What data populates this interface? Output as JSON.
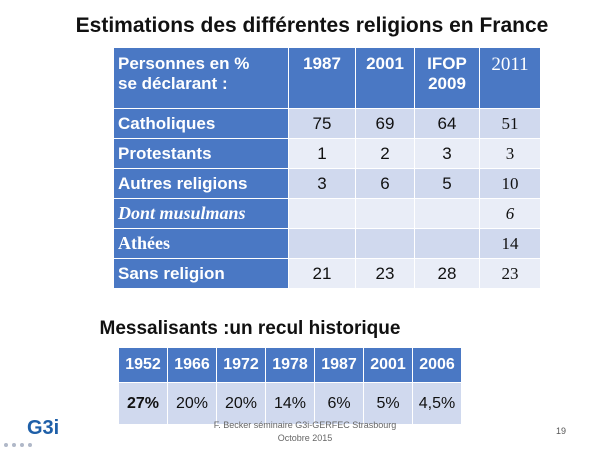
{
  "title": "Estimations des différentes religions en France",
  "table": {
    "header": [
      "Personnes en %\nse déclarant :",
      "1987",
      "2001",
      "IFOP\n2009",
      "2011"
    ],
    "rows": [
      {
        "label": "Catholiques",
        "values": [
          "75",
          "69",
          "64",
          "51"
        ]
      },
      {
        "label": "Protestants",
        "values": [
          "1",
          "2",
          "3",
          "3"
        ]
      },
      {
        "label": "Autres religions",
        "values": [
          "3",
          "6",
          "5",
          "10"
        ]
      },
      {
        "label": "Dont musulmans",
        "values": [
          "",
          "",
          "",
          "6"
        ]
      },
      {
        "label": "Athées",
        "values": [
          "",
          "",
          "",
          "14"
        ]
      },
      {
        "label": "Sans religion",
        "values": [
          "21",
          "23",
          "28",
          "23"
        ]
      }
    ]
  },
  "subtitle": "Messalisants :un recul historique",
  "messalisants": {
    "years": [
      "1952",
      "1966",
      "1972",
      "1978",
      "1987",
      "2001",
      "2006"
    ],
    "values": [
      "27%",
      "20%",
      "20%",
      "14%",
      "6%",
      "5%",
      "4,5%"
    ]
  },
  "logo": "G3i",
  "footer": "F. Becker séminaire G3i-GERFEC Strasbourg\nOctobre 2015",
  "page_number": "19"
}
